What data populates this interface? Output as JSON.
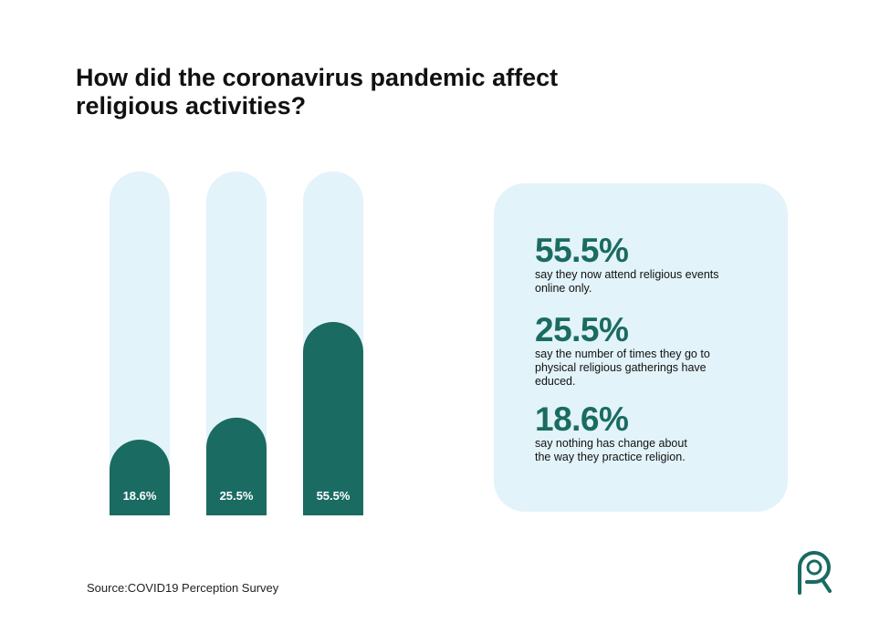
{
  "title": "How did the coronavirus pandemic affect religious activities?",
  "colors": {
    "bar": "#1a6b62",
    "track": "#e2f3f9",
    "panel": "#e2f3f9",
    "value_text": "#1a6b62",
    "label_text": "#ffffff"
  },
  "chart_data": {
    "type": "bar",
    "title": "How did the coronavirus pandemic affect religious activities?",
    "categories": [],
    "values": [
      18.6,
      25.5,
      55.5
    ],
    "labels": [
      "18.6%",
      "25.5%",
      "55.5%"
    ],
    "ylim": [
      0,
      100
    ],
    "grid": false,
    "legend": "none"
  },
  "stats": [
    {
      "value": "55.5%",
      "desc_lines": [
        "say they now attend religious events",
        "online only."
      ]
    },
    {
      "value": "25.5%",
      "desc_lines": [
        "say the number of times they go to",
        "physical religious gatherings have",
        "educed."
      ]
    },
    {
      "value": "18.6%",
      "desc_lines": [
        "say nothing has change about",
        "the way they practice religion."
      ]
    }
  ],
  "source": "Source:COVID19 Perception Survey",
  "logo_icon": "magnifier-logo-icon"
}
